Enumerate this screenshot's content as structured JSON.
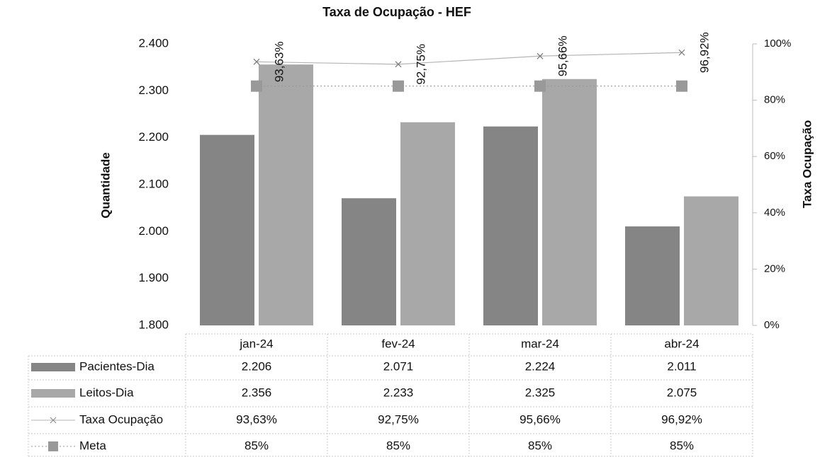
{
  "chart_data": {
    "type": "bar",
    "title": "Taxa de Ocupação - HEF",
    "ylabel": "Quantidade",
    "y2label": "Taxa Ocupação",
    "categories": [
      "jan-24",
      "fev-24",
      "mar-24",
      "abr-24"
    ],
    "series": [
      {
        "name": "Pacientes-Dia",
        "type": "bar",
        "color": "#858585",
        "values": [
          2206,
          2071,
          2224,
          2011
        ],
        "value_labels": [
          "2.206",
          "2.071",
          "2.224",
          "2.011"
        ]
      },
      {
        "name": "Leitos-Dia",
        "type": "bar",
        "color": "#a8a8a8",
        "values": [
          2356,
          2233,
          2325,
          2075
        ],
        "value_labels": [
          "2.356",
          "2.233",
          "2.325",
          "2.075"
        ]
      },
      {
        "name": "Taxa Ocupação",
        "type": "line",
        "axis": "y2",
        "color": "#b5b5b5",
        "values": [
          93.63,
          92.75,
          95.66,
          96.92
        ],
        "value_labels": [
          "93,63%",
          "92,75%",
          "95,66%",
          "96,92%"
        ]
      },
      {
        "name": "Meta",
        "type": "line",
        "axis": "y2",
        "color": "#999999",
        "values": [
          85,
          85,
          85,
          85
        ],
        "value_labels": [
          "85%",
          "85%",
          "85%",
          "85%"
        ]
      }
    ],
    "ylim": [
      1800,
      2400
    ],
    "yticks": [
      {
        "value": 1800,
        "label": "1.800"
      },
      {
        "value": 1900,
        "label": "1.900"
      },
      {
        "value": 2000,
        "label": "2.000"
      },
      {
        "value": 2100,
        "label": "2.100"
      },
      {
        "value": 2200,
        "label": "2.200"
      },
      {
        "value": 2300,
        "label": "2.300"
      },
      {
        "value": 2400,
        "label": "2.400"
      }
    ],
    "y2lim": [
      0,
      100
    ],
    "y2ticks": [
      {
        "value": 0,
        "label": "0%"
      },
      {
        "value": 20,
        "label": "20%"
      },
      {
        "value": 40,
        "label": "40%"
      },
      {
        "value": 60,
        "label": "60%"
      },
      {
        "value": 80,
        "label": "80%"
      },
      {
        "value": 100,
        "label": "100%"
      }
    ],
    "grid": false
  }
}
